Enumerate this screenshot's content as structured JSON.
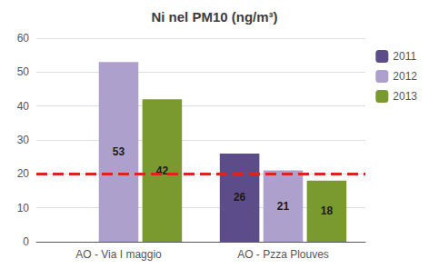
{
  "chart_data": {
    "type": "bar",
    "title": "Ni nel PM10 (ng/m³)",
    "categories": [
      "AO - Via I maggio",
      "AO - Pzza Plouves"
    ],
    "series": [
      {
        "name": "2011",
        "color": "#5c4d8a",
        "values": [
          null,
          26
        ]
      },
      {
        "name": "2012",
        "color": "#aea0cc",
        "values": [
          53,
          21
        ]
      },
      {
        "name": "2013",
        "color": "#7a9a30",
        "values": [
          42,
          18
        ]
      }
    ],
    "reference_line": {
      "value": 20,
      "color": "#dd2222",
      "line_style": "dashed"
    },
    "ylim": [
      0,
      60
    ],
    "yticks": [
      0,
      10,
      20,
      30,
      40,
      50,
      60
    ],
    "grid": true,
    "legend": "upper right",
    "data_labels": true
  }
}
